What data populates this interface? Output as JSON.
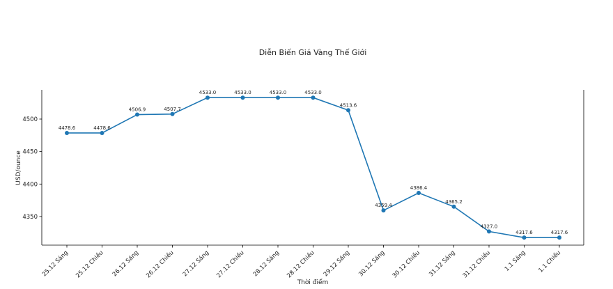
{
  "chart_data": {
    "type": "line",
    "title": "Diễn Biến Giá Vàng Thế Giới",
    "xlabel": "Thời điểm",
    "ylabel": "USD/ounce",
    "categories": [
      "25.12 Sáng",
      "25.12 Chiều",
      "26.12 Sáng",
      "26.12 Chiều",
      "27.12 Sáng",
      "27.12 Chiều",
      "28.12 Sáng",
      "28.12 Chiều",
      "29.12 Sáng",
      "30.12 Sáng",
      "30.12 Chiều",
      "31.12 Sáng",
      "31.12 Chiều",
      "1.1 Sáng",
      "1.1 Chiều"
    ],
    "series": [
      {
        "values": [
          4478.6,
          4478.6,
          4506.9,
          4507.7,
          4533.0,
          4533.0,
          4533.0,
          4533.0,
          4513.6,
          4359.4,
          4386.4,
          4365.2,
          4327.0,
          4317.6,
          4317.6
        ],
        "color": "#1f77b4"
      }
    ],
    "data_labels": [
      "4478.6",
      "4478.6",
      "4506.9",
      "4507.7",
      "4533.0",
      "4533.0",
      "4533.0",
      "4533.0",
      "4513.6",
      "4359.4",
      "4386.4",
      "4365.2",
      "4327.0",
      "4317.6",
      "4317.6"
    ],
    "yticks": [
      4350,
      4400,
      4450,
      4500
    ],
    "ytick_labels": [
      "4350",
      "4400",
      "4450",
      "4500"
    ],
    "ylim": [
      4306,
      4545
    ],
    "grid": false,
    "legend": "none"
  }
}
